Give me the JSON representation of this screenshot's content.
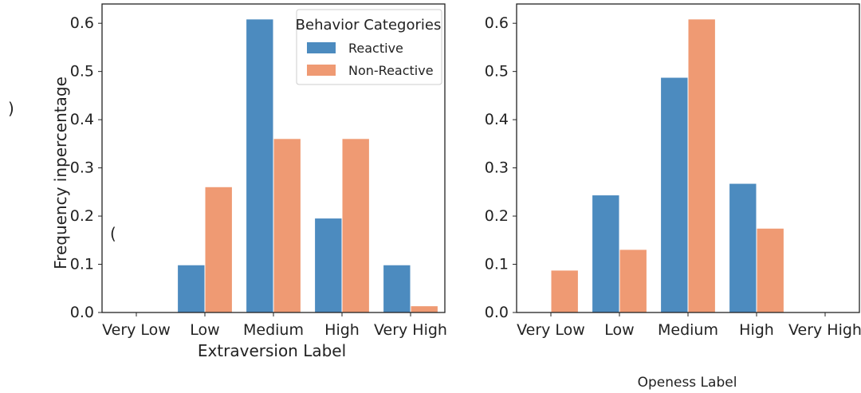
{
  "colors": {
    "reactive": "#4c8bbf",
    "non_reactive": "#ef9a73"
  },
  "stray": {
    "left_paren": ")",
    "small_paren": "("
  },
  "chart_data": [
    {
      "type": "bar",
      "xlabel": "Extraversion Label",
      "ylabel": "Frequency    inpercentage",
      "categories": [
        "Very Low",
        "Low",
        "Medium",
        "High",
        "Very High"
      ],
      "yticks": [
        "0.0",
        "0.1",
        "0.2",
        "0.3",
        "0.4",
        "0.5",
        "0.6"
      ],
      "ylim": [
        0,
        0.64
      ],
      "legend": {
        "title": "Behavior Categories",
        "position": "top-right"
      },
      "series": [
        {
          "name": "Reactive",
          "values": [
            0.0,
            0.098,
            0.608,
            0.195,
            0.098
          ]
        },
        {
          "name": "Non-Reactive",
          "values": [
            0.0,
            0.26,
            0.36,
            0.36,
            0.013
          ]
        }
      ]
    },
    {
      "type": "bar",
      "xlabel": "Openess Label",
      "ylabel": "",
      "categories": [
        "Very Low",
        "Low",
        "Medium",
        "High",
        "Very High"
      ],
      "yticks": [
        "0.0",
        "0.1",
        "0.2",
        "0.3",
        "0.4",
        "0.5",
        "0.6"
      ],
      "ylim": [
        0,
        0.64
      ],
      "series": [
        {
          "values": [
            0.0,
            0.243,
            0.487,
            0.267,
            0.0
          ]
        },
        {
          "values": [
            0.087,
            0.13,
            0.608,
            0.174,
            0.0
          ]
        }
      ]
    }
  ]
}
